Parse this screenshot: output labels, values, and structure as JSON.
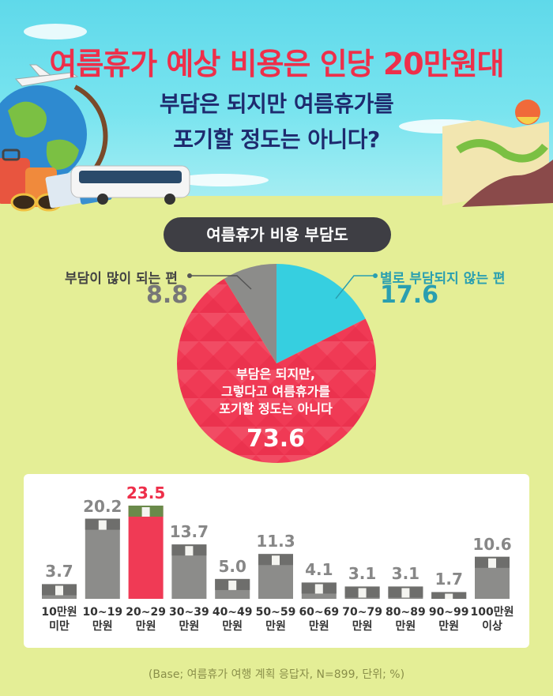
{
  "headline": {
    "title_part1": "여름휴가 예상 비용은 ",
    "title_part2": "인당 20만원대",
    "subtitle_line1": "부담은 되지만 여름휴가를",
    "subtitle_line2": "포기할 정도는 아니다?"
  },
  "pie_title": "여름휴가 비용 부담도",
  "footnote": "(Base; 여름휴가 여행 계획 응답자, N=899, 단위; %)",
  "colors": {
    "cyan": "#36cfe0",
    "red": "#f03a55",
    "gray": "#8c8c8a",
    "navy": "#1e2a6e",
    "title_red": "#ee2f4a",
    "highlight_red": "#ee2f4a"
  },
  "chart_data": [
    {
      "type": "pie",
      "slices": [
        {
          "label": "별로 부담되지 않는 편",
          "value": 17.6,
          "value_text": "17.6",
          "color": "#36cfe0"
        },
        {
          "label_lines": [
            "부담은 되지만,",
            "그렇다고 여름휴가를",
            "포기할 정도는 아니다"
          ],
          "value": 73.6,
          "value_text": "73.6",
          "color": "#f03a55"
        },
        {
          "label": "부담이 많이 되는 편",
          "value": 8.8,
          "value_text": "8.8",
          "color": "#8c8c8a"
        }
      ]
    },
    {
      "type": "bar",
      "categories": [
        [
          "10만원",
          "미만"
        ],
        [
          "10~19",
          "만원"
        ],
        [
          "20~29",
          "만원"
        ],
        [
          "30~39",
          "만원"
        ],
        [
          "40~49",
          "만원"
        ],
        [
          "50~59",
          "만원"
        ],
        [
          "60~69",
          "만원"
        ],
        [
          "70~79",
          "만원"
        ],
        [
          "80~89",
          "만원"
        ],
        [
          "90~99",
          "만원"
        ],
        [
          "100만원",
          "이상"
        ]
      ],
      "values": [
        3.7,
        20.2,
        23.5,
        13.7,
        5.0,
        11.3,
        4.1,
        3.1,
        3.1,
        1.7,
        10.6
      ],
      "value_labels": [
        "3.7",
        "20.2",
        "23.5",
        "13.7",
        "5.0",
        "11.3",
        "4.1",
        "3.1",
        "3.1",
        "1.7",
        "10.6"
      ],
      "highlight_index": 2,
      "ylim": [
        0,
        23.5
      ]
    }
  ]
}
